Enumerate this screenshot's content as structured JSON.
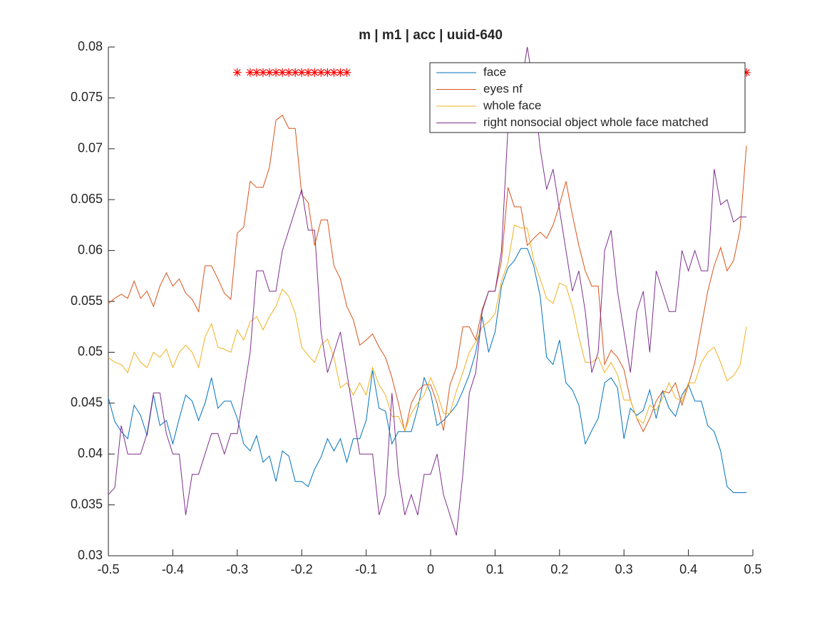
{
  "chart_data": {
    "type": "line",
    "title": "m | m1 | acc | uuid-640",
    "x": [
      -0.5,
      -0.49,
      -0.48,
      -0.47,
      -0.46,
      -0.45,
      -0.44,
      -0.43,
      -0.42,
      -0.41,
      -0.4,
      -0.39,
      -0.38,
      -0.37,
      -0.36,
      -0.35,
      -0.34,
      -0.33,
      -0.32,
      -0.31,
      -0.3,
      -0.29,
      -0.28,
      -0.27,
      -0.26,
      -0.25,
      -0.24,
      -0.23,
      -0.22,
      -0.21,
      -0.2,
      -0.19,
      -0.18,
      -0.17,
      -0.16,
      -0.15,
      -0.14,
      -0.13,
      -0.12,
      -0.11,
      -0.1,
      -0.09,
      -0.08,
      -0.07,
      -0.06,
      -0.05,
      -0.04,
      -0.03,
      -0.02,
      -0.01,
      0,
      0.01,
      0.02,
      0.03,
      0.04,
      0.05,
      0.06,
      0.07,
      0.08,
      0.09,
      0.1,
      0.11,
      0.12,
      0.13,
      0.14,
      0.15,
      0.16,
      0.17,
      0.18,
      0.19,
      0.2,
      0.21,
      0.22,
      0.23,
      0.24,
      0.25,
      0.26,
      0.27,
      0.28,
      0.29,
      0.3,
      0.31,
      0.32,
      0.33,
      0.34,
      0.35,
      0.36,
      0.37,
      0.38,
      0.39,
      0.4,
      0.41,
      0.42,
      0.43,
      0.44,
      0.45,
      0.46,
      0.47,
      0.48,
      0.49
    ],
    "series": [
      {
        "name": "face",
        "color": "#0072BD",
        "values": [
          0.0455,
          0.0432,
          0.0422,
          0.0415,
          0.0448,
          0.0438,
          0.0418,
          0.0458,
          0.0428,
          0.0433,
          0.041,
          0.0435,
          0.0458,
          0.0452,
          0.0433,
          0.045,
          0.0475,
          0.0445,
          0.0452,
          0.0452,
          0.0435,
          0.041,
          0.0403,
          0.0418,
          0.0392,
          0.0398,
          0.0373,
          0.0403,
          0.0398,
          0.0373,
          0.0373,
          0.0368,
          0.0385,
          0.0397,
          0.0415,
          0.0403,
          0.0415,
          0.0392,
          0.0415,
          0.0415,
          0.0433,
          0.0482,
          0.0445,
          0.0442,
          0.041,
          0.0422,
          0.0422,
          0.0422,
          0.0445,
          0.0475,
          0.046,
          0.0428,
          0.0433,
          0.044,
          0.0448,
          0.0462,
          0.0478,
          0.05,
          0.0535,
          0.05,
          0.052,
          0.0565,
          0.0583,
          0.059,
          0.0602,
          0.0602,
          0.0585,
          0.0555,
          0.0495,
          0.0488,
          0.0512,
          0.047,
          0.0463,
          0.0448,
          0.041,
          0.0423,
          0.0435,
          0.047,
          0.0475,
          0.0465,
          0.0415,
          0.0445,
          0.0438,
          0.0443,
          0.0463,
          0.0435,
          0.0462,
          0.0445,
          0.0437,
          0.0458,
          0.0468,
          0.0452,
          0.0452,
          0.0428,
          0.0422,
          0.0403,
          0.0368,
          0.0362,
          0.0362,
          0.0362
        ]
      },
      {
        "name": "eyes nf",
        "color": "#D95319",
        "values": [
          0.0548,
          0.0553,
          0.0557,
          0.0553,
          0.057,
          0.0553,
          0.056,
          0.0545,
          0.0565,
          0.0578,
          0.0565,
          0.0572,
          0.0558,
          0.0552,
          0.054,
          0.0585,
          0.0585,
          0.0572,
          0.0558,
          0.0552,
          0.0617,
          0.0623,
          0.0668,
          0.0662,
          0.0662,
          0.0682,
          0.0728,
          0.0733,
          0.072,
          0.072,
          0.0655,
          0.0647,
          0.0605,
          0.063,
          0.063,
          0.0585,
          0.0572,
          0.0545,
          0.0532,
          0.0507,
          0.0512,
          0.0518,
          0.0505,
          0.0495,
          0.0475,
          0.045,
          0.0422,
          0.045,
          0.0462,
          0.0468,
          0.0468,
          0.045,
          0.0423,
          0.0468,
          0.0485,
          0.0525,
          0.0525,
          0.0512,
          0.0542,
          0.056,
          0.056,
          0.059,
          0.0662,
          0.0643,
          0.0643,
          0.0605,
          0.0612,
          0.0618,
          0.0612,
          0.0625,
          0.0645,
          0.0668,
          0.0635,
          0.0605,
          0.058,
          0.0565,
          0.0565,
          0.0488,
          0.0502,
          0.0495,
          0.0483,
          0.0453,
          0.0435,
          0.0422,
          0.0435,
          0.0452,
          0.0462,
          0.046,
          0.047,
          0.0448,
          0.0468,
          0.049,
          0.0525,
          0.056,
          0.0585,
          0.0603,
          0.058,
          0.059,
          0.062,
          0.0703
        ]
      },
      {
        "name": "whole face",
        "color": "#EDB120",
        "values": [
          0.0495,
          0.049,
          0.0488,
          0.048,
          0.05,
          0.049,
          0.0485,
          0.05,
          0.0495,
          0.0503,
          0.0485,
          0.05,
          0.0507,
          0.05,
          0.0485,
          0.0515,
          0.0528,
          0.0505,
          0.0503,
          0.05,
          0.0522,
          0.0512,
          0.053,
          0.0535,
          0.0522,
          0.0535,
          0.0545,
          0.0562,
          0.0555,
          0.0538,
          0.0505,
          0.0497,
          0.049,
          0.0507,
          0.0513,
          0.0495,
          0.0465,
          0.047,
          0.0458,
          0.047,
          0.0458,
          0.0485,
          0.0468,
          0.0458,
          0.0437,
          0.0437,
          0.0423,
          0.044,
          0.045,
          0.0458,
          0.0475,
          0.046,
          0.044,
          0.044,
          0.0462,
          0.048,
          0.05,
          0.051,
          0.0525,
          0.053,
          0.0538,
          0.057,
          0.0588,
          0.0625,
          0.0622,
          0.0622,
          0.059,
          0.0572,
          0.0553,
          0.0548,
          0.0568,
          0.0565,
          0.0545,
          0.0515,
          0.049,
          0.049,
          0.0495,
          0.048,
          0.049,
          0.0478,
          0.0453,
          0.0453,
          0.0435,
          0.043,
          0.0448,
          0.0443,
          0.0455,
          0.047,
          0.0455,
          0.0452,
          0.047,
          0.047,
          0.049,
          0.05,
          0.0505,
          0.049,
          0.0472,
          0.0477,
          0.0487,
          0.0525
        ]
      },
      {
        "name": "right nonsocial object whole face matched",
        "color": "#7E2F8E",
        "values": [
          0.036,
          0.0367,
          0.0428,
          0.04,
          0.04,
          0.04,
          0.042,
          0.046,
          0.046,
          0.042,
          0.04,
          0.04,
          0.034,
          0.038,
          0.038,
          0.04,
          0.042,
          0.042,
          0.04,
          0.042,
          0.042,
          0.046,
          0.05,
          0.058,
          0.058,
          0.056,
          0.056,
          0.06,
          0.062,
          0.064,
          0.066,
          0.062,
          0.062,
          0.052,
          0.048,
          0.05,
          0.052,
          0.048,
          0.044,
          0.04,
          0.04,
          0.04,
          0.034,
          0.036,
          0.046,
          0.038,
          0.034,
          0.036,
          0.034,
          0.038,
          0.038,
          0.04,
          0.036,
          0.034,
          0.032,
          0.038,
          0.046,
          0.048,
          0.054,
          0.056,
          0.056,
          0.06,
          0.072,
          0.072,
          0.076,
          0.08,
          0.076,
          0.07,
          0.066,
          0.068,
          0.064,
          0.06,
          0.056,
          0.058,
          0.054,
          0.048,
          0.05,
          0.06,
          0.062,
          0.056,
          0.052,
          0.048,
          0.054,
          0.056,
          0.05,
          0.058,
          0.056,
          0.054,
          0.054,
          0.06,
          0.058,
          0.06,
          0.058,
          0.058,
          0.068,
          0.0645,
          0.065,
          0.0628,
          0.0633,
          0.0633
        ]
      }
    ],
    "significance": {
      "x": [
        -0.3,
        -0.28,
        -0.27,
        -0.26,
        -0.25,
        -0.24,
        -0.23,
        -0.22,
        -0.21,
        -0.2,
        -0.19,
        -0.18,
        -0.17,
        -0.16,
        -0.15,
        -0.14,
        -0.13,
        0.49
      ],
      "y": 0.0775,
      "color": "#FF0000"
    },
    "xlim": [
      -0.5,
      0.5
    ],
    "xticks": [
      -0.5,
      -0.4,
      -0.3,
      -0.2,
      -0.1,
      0,
      0.1,
      0.2,
      0.3,
      0.4,
      0.5
    ],
    "ylim": [
      0.03,
      0.08
    ],
    "yticks": [
      0.03,
      0.035,
      0.04,
      0.045,
      0.05,
      0.055,
      0.06,
      0.065,
      0.07,
      0.075,
      0.08
    ],
    "legend": "northeast"
  }
}
